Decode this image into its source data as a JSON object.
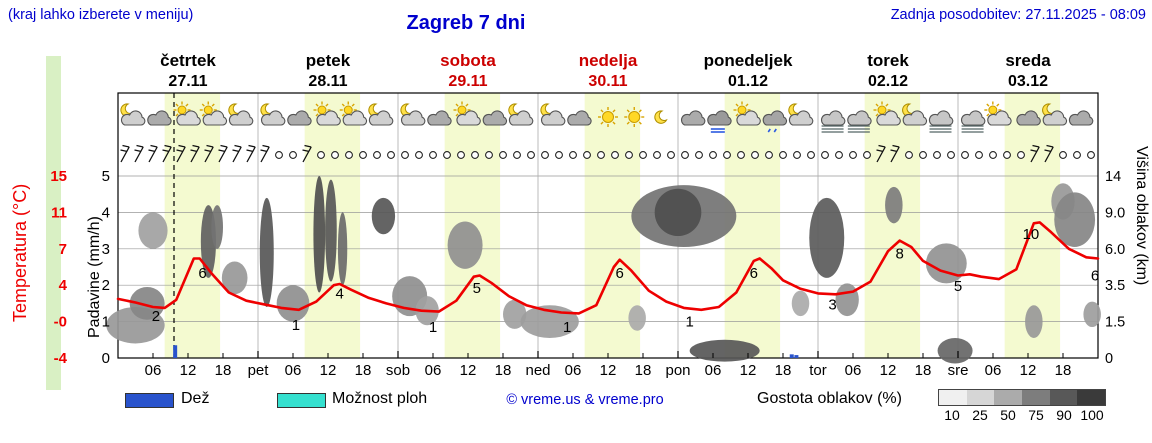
{
  "header": {
    "hint": "(kraj lahko izberete v meniju)",
    "title": "Zagreb 7 dni",
    "updated": "Zadnja posodobitev: 27.11.2025 - 08:09"
  },
  "axes": {
    "temp_title": "Temperatura (°C)",
    "precip_title": "Padavine (mm/h)",
    "cloud_title": "Višina oblakov (km)",
    "temp_ticks": [
      "15",
      "11",
      "7",
      "4",
      "-0",
      "-4"
    ],
    "precip_ticks": [
      "5",
      "4",
      "3",
      "2",
      "1",
      "0"
    ],
    "cloud_ticks": [
      "14",
      "9.0",
      "6.0",
      "3.5",
      "1.5",
      "0"
    ],
    "hour_labels": [
      "06",
      "12",
      "18"
    ]
  },
  "legend": {
    "rain_label": "Dež",
    "showers_label": "Možnost ploh",
    "copyright": "© vreme.us & vreme.pro",
    "cloud_density_label": "Gostota oblakov (%)",
    "cloud_scale": [
      {
        "value": "10",
        "shade": "#f0f0f0"
      },
      {
        "value": "25",
        "shade": "#d6d6d6"
      },
      {
        "value": "50",
        "shade": "#ababab"
      },
      {
        "value": "75",
        "shade": "#7d7d7d"
      },
      {
        "value": "90",
        "shade": "#585858"
      },
      {
        "value": "100",
        "shade": "#3a3a3a"
      }
    ]
  },
  "colors": {
    "accent_blue": "#0000cd",
    "weekend_red": "#cc0000",
    "temp_curve": "#ee0000",
    "rain": "#2953cc",
    "showers": "#35e0cf",
    "day_band": "#f4fad0"
  },
  "chart_data": {
    "type": "line",
    "title": "Zagreb 7 dni",
    "x_unit": "hours from četrtek 27.11 00:00",
    "ylabel_left": "Padavine (mm/h) / Temperatura (°C)",
    "ylabel_right": "Višina oblakov (km)",
    "days": [
      {
        "name": "četrtek",
        "date": "27.11",
        "weekend": false
      },
      {
        "name": "petek",
        "date": "28.11",
        "weekend": false
      },
      {
        "name": "sobota",
        "date": "29.11",
        "weekend": true
      },
      {
        "name": "nedelja",
        "date": "30.11",
        "weekend": true
      },
      {
        "name": "ponedeljek",
        "date": "01.12",
        "weekend": false
      },
      {
        "name": "torek",
        "date": "02.12",
        "weekend": false
      },
      {
        "name": "sreda",
        "date": "03.12",
        "weekend": false
      }
    ],
    "day_abbr": [
      "pet",
      "sob",
      "ned",
      "pon",
      "tor",
      "sre"
    ],
    "temp_axis_ticks": [
      -4,
      0,
      4,
      7,
      11,
      15
    ],
    "daylight_band_hours": [
      8,
      17.5
    ],
    "now_line_hour": 9.6,
    "temperature_series": [
      [
        0,
        2.5
      ],
      [
        3,
        2.1
      ],
      [
        6,
        1.6
      ],
      [
        8,
        1.5
      ],
      [
        10,
        2.4
      ],
      [
        13,
        6.2
      ],
      [
        14,
        6.2
      ],
      [
        16,
        5.0
      ],
      [
        19,
        3.2
      ],
      [
        22,
        2.3
      ],
      [
        25,
        1.9
      ],
      [
        28,
        1.5
      ],
      [
        31,
        1.3
      ],
      [
        34,
        2.2
      ],
      [
        37,
        4.0
      ],
      [
        38,
        4.1
      ],
      [
        40,
        3.5
      ],
      [
        43,
        2.6
      ],
      [
        46,
        2.0
      ],
      [
        49,
        1.5
      ],
      [
        52,
        1.2
      ],
      [
        55,
        1.1
      ],
      [
        58,
        2.3
      ],
      [
        61,
        4.7
      ],
      [
        62,
        4.8
      ],
      [
        64,
        4.2
      ],
      [
        67,
        2.8
      ],
      [
        70,
        1.8
      ],
      [
        73,
        1.3
      ],
      [
        76,
        1.0
      ],
      [
        79,
        0.9
      ],
      [
        82,
        1.8
      ],
      [
        85,
        5.5
      ],
      [
        86,
        6.1
      ],
      [
        88,
        5.2
      ],
      [
        91,
        3.4
      ],
      [
        94,
        2.2
      ],
      [
        97,
        1.5
      ],
      [
        100,
        1.3
      ],
      [
        103,
        1.6
      ],
      [
        106,
        3.2
      ],
      [
        109,
        6.0
      ],
      [
        110,
        6.2
      ],
      [
        112,
        5.4
      ],
      [
        114,
        4.4
      ],
      [
        117,
        3.6
      ],
      [
        120,
        3.1
      ],
      [
        123,
        3.0
      ],
      [
        126,
        3.3
      ],
      [
        129,
        4.3
      ],
      [
        132,
        6.8
      ],
      [
        134,
        7.9
      ],
      [
        136,
        7.2
      ],
      [
        138,
        6.0
      ],
      [
        141,
        5.2
      ],
      [
        144,
        4.8
      ],
      [
        146,
        4.9
      ],
      [
        148,
        4.7
      ],
      [
        151,
        4.5
      ],
      [
        154,
        5.3
      ],
      [
        157,
        9.8
      ],
      [
        158,
        9.9
      ],
      [
        160,
        8.8
      ],
      [
        163,
        7.0
      ],
      [
        166,
        6.3
      ],
      [
        168,
        6.2
      ]
    ],
    "temp_point_labels": [
      {
        "h": 6.5,
        "t": 0.6,
        "text": "2"
      },
      {
        "h": 14.5,
        "t": 5.0,
        "text": "6"
      },
      {
        "h": 30.5,
        "t": -0.4,
        "text": "1"
      },
      {
        "h": 38,
        "t": 3.1,
        "text": "4"
      },
      {
        "h": 54,
        "t": -0.6,
        "text": "1"
      },
      {
        "h": 61.5,
        "t": 3.7,
        "text": "5"
      },
      {
        "h": 77,
        "t": -0.6,
        "text": "1"
      },
      {
        "h": 86,
        "t": 5.0,
        "text": "6"
      },
      {
        "h": 98,
        "t": 0.0,
        "text": "1"
      },
      {
        "h": 109,
        "t": 5.0,
        "text": "6"
      },
      {
        "h": 122.5,
        "t": 1.9,
        "text": "3"
      },
      {
        "h": 134,
        "t": 6.6,
        "text": "8"
      },
      {
        "h": 144,
        "t": 3.9,
        "text": "5"
      },
      {
        "h": 156.5,
        "t": 8.6,
        "text": "10"
      },
      {
        "h": 167.5,
        "t": 4.8,
        "text": "6"
      }
    ],
    "precip_bars": [
      {
        "h": 9.8,
        "mm": 0.35
      },
      {
        "h": 115.5,
        "mm": 0.1
      },
      {
        "h": 116.3,
        "mm": 0.08
      }
    ],
    "weather_icons": [
      {
        "h": 2.5,
        "t": "moon-cloud"
      },
      {
        "h": 7,
        "t": "cloud"
      },
      {
        "h": 12,
        "t": "sun-cloud"
      },
      {
        "h": 16.5,
        "t": "sun-cloud"
      },
      {
        "h": 21,
        "t": "moon-cloud"
      },
      {
        "h": 26.5,
        "t": "moon-cloud"
      },
      {
        "h": 31,
        "t": "cloud"
      },
      {
        "h": 36,
        "t": "sun-cloud"
      },
      {
        "h": 40.5,
        "t": "sun-cloud"
      },
      {
        "h": 45,
        "t": "moon-cloud"
      },
      {
        "h": 50.5,
        "t": "moon-cloud"
      },
      {
        "h": 55,
        "t": "cloud"
      },
      {
        "h": 60,
        "t": "sun-cloud"
      },
      {
        "h": 64.5,
        "t": "cloud"
      },
      {
        "h": 69,
        "t": "moon-cloud"
      },
      {
        "h": 74.5,
        "t": "moon-cloud"
      },
      {
        "h": 79,
        "t": "cloud"
      },
      {
        "h": 84,
        "t": "sun"
      },
      {
        "h": 88.5,
        "t": "sun"
      },
      {
        "h": 93,
        "t": "moon"
      },
      {
        "h": 98.5,
        "t": "cloud"
      },
      {
        "h": 103,
        "t": "rain-cloud"
      },
      {
        "h": 108,
        "t": "sun-cloud"
      },
      {
        "h": 112.5,
        "t": "drizzle-cloud"
      },
      {
        "h": 117,
        "t": "moon-cloud"
      },
      {
        "h": 122.5,
        "t": "fog-cloud"
      },
      {
        "h": 127,
        "t": "fog-cloud"
      },
      {
        "h": 132,
        "t": "sun-cloud"
      },
      {
        "h": 136.5,
        "t": "moon-cloud"
      },
      {
        "h": 141,
        "t": "fog-cloud"
      },
      {
        "h": 146.5,
        "t": "fog-cloud"
      },
      {
        "h": 151,
        "t": "sun-cloud"
      },
      {
        "h": 156,
        "t": "cloud"
      },
      {
        "h": 160.5,
        "t": "moon-cloud"
      },
      {
        "h": 165,
        "t": "cloud"
      }
    ],
    "wind": {
      "slots": 70,
      "start_hour": 1.2,
      "step_hours": 2.4,
      "barb_slots": [
        0,
        1,
        2,
        3,
        4,
        5,
        6,
        7,
        8,
        9,
        10,
        13,
        54,
        55,
        65,
        66
      ]
    },
    "clouds": [
      {
        "h": 3,
        "lvl": 0.9,
        "rx": 5,
        "ry": 0.5,
        "s": 45
      },
      {
        "h": 5,
        "lvl": 1.5,
        "rx": 3,
        "ry": 0.45,
        "s": 55
      },
      {
        "h": 6,
        "lvl": 3.5,
        "rx": 2.5,
        "ry": 0.5,
        "s": 40
      },
      {
        "h": 15.5,
        "lvl": 3.2,
        "rx": 1.3,
        "ry": 1.0,
        "s": 75
      },
      {
        "h": 17,
        "lvl": 3.6,
        "rx": 1,
        "ry": 0.6,
        "s": 65
      },
      {
        "h": 20,
        "lvl": 2.2,
        "rx": 2.2,
        "ry": 0.45,
        "s": 45
      },
      {
        "h": 25.5,
        "lvl": 2.9,
        "rx": 1.2,
        "ry": 1.5,
        "s": 80
      },
      {
        "h": 30,
        "lvl": 1.5,
        "rx": 2.8,
        "ry": 0.5,
        "s": 50
      },
      {
        "h": 34.5,
        "lvl": 3.4,
        "rx": 1,
        "ry": 1.6,
        "s": 85
      },
      {
        "h": 36.5,
        "lvl": 3.5,
        "rx": 1,
        "ry": 1.4,
        "s": 80
      },
      {
        "h": 38.5,
        "lvl": 3.0,
        "rx": 0.8,
        "ry": 1.0,
        "s": 70
      },
      {
        "h": 45.5,
        "lvl": 3.9,
        "rx": 2,
        "ry": 0.5,
        "s": 80
      },
      {
        "h": 50,
        "lvl": 1.7,
        "rx": 3,
        "ry": 0.55,
        "s": 50
      },
      {
        "h": 53,
        "lvl": 1.3,
        "rx": 2,
        "ry": 0.4,
        "s": 40
      },
      {
        "h": 59.5,
        "lvl": 3.1,
        "rx": 3,
        "ry": 0.65,
        "s": 50
      },
      {
        "h": 68,
        "lvl": 1.2,
        "rx": 2,
        "ry": 0.4,
        "s": 40
      },
      {
        "h": 74,
        "lvl": 1.0,
        "rx": 5,
        "ry": 0.45,
        "s": 42
      },
      {
        "h": 89,
        "lvl": 1.1,
        "rx": 1.5,
        "ry": 0.35,
        "s": 35
      },
      {
        "h": 97,
        "lvl": 3.9,
        "rx": 9,
        "ry": 0.85,
        "s": 65
      },
      {
        "h": 96,
        "lvl": 4.0,
        "rx": 4,
        "ry": 0.65,
        "s": 85
      },
      {
        "h": 104,
        "lvl": 0.2,
        "rx": 6,
        "ry": 0.3,
        "s": 80
      },
      {
        "h": 117,
        "lvl": 1.5,
        "rx": 1.5,
        "ry": 0.35,
        "s": 35
      },
      {
        "h": 121.5,
        "lvl": 3.3,
        "rx": 3,
        "ry": 1.1,
        "s": 78
      },
      {
        "h": 125,
        "lvl": 1.6,
        "rx": 2,
        "ry": 0.45,
        "s": 48
      },
      {
        "h": 133,
        "lvl": 4.2,
        "rx": 1.5,
        "ry": 0.5,
        "s": 60
      },
      {
        "h": 142,
        "lvl": 2.6,
        "rx": 3.5,
        "ry": 0.55,
        "s": 48
      },
      {
        "h": 143.5,
        "lvl": 0.2,
        "rx": 3,
        "ry": 0.35,
        "s": 72
      },
      {
        "h": 157,
        "lvl": 1.0,
        "rx": 1.5,
        "ry": 0.45,
        "s": 45
      },
      {
        "h": 162,
        "lvl": 4.3,
        "rx": 2,
        "ry": 0.5,
        "s": 45
      },
      {
        "h": 164,
        "lvl": 3.8,
        "rx": 3.5,
        "ry": 0.75,
        "s": 55
      },
      {
        "h": 167,
        "lvl": 1.2,
        "rx": 1.5,
        "ry": 0.35,
        "s": 42
      }
    ]
  }
}
